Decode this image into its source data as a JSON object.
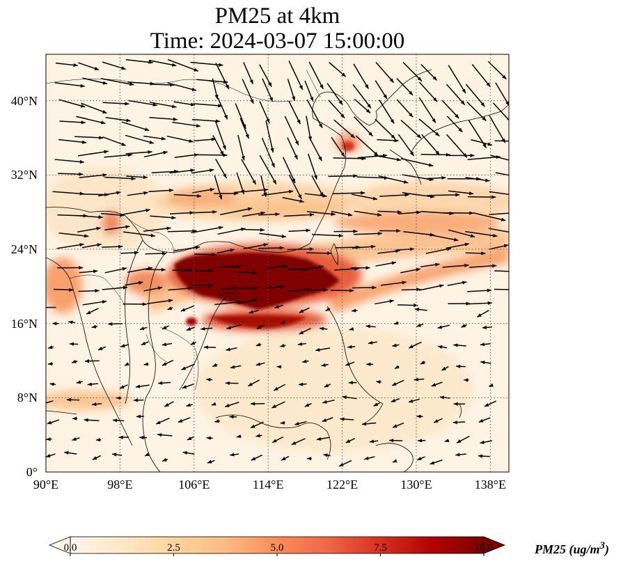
{
  "title": {
    "line1": "PM25 at 4km",
    "line2": "Time: 2024-03-07 15:00:00"
  },
  "map": {
    "lon_range": [
      90,
      140
    ],
    "lat_range": [
      0,
      45
    ],
    "lat_ticks": [
      {
        "value": 40,
        "label": "40°N"
      },
      {
        "value": 32,
        "label": "32°N"
      },
      {
        "value": 24,
        "label": "24°N"
      },
      {
        "value": 16,
        "label": "16°N"
      },
      {
        "value": 8,
        "label": "8°N"
      },
      {
        "value": 0,
        "label": "0°"
      }
    ],
    "lon_ticks": [
      {
        "value": 90,
        "label": "90°E"
      },
      {
        "value": 98,
        "label": "98°E"
      },
      {
        "value": 106,
        "label": "106°E"
      },
      {
        "value": 114,
        "label": "114°E"
      },
      {
        "value": 122,
        "label": "122°E"
      },
      {
        "value": 130,
        "label": "130°E"
      },
      {
        "value": 138,
        "label": "138°E"
      }
    ],
    "gridlines": true
  },
  "colorbar": {
    "label": "PM25 (ug/m",
    "label_sup": "3",
    "label_close": ")",
    "min": 0,
    "max": 10,
    "ticks": [
      "0.0",
      "2.5",
      "5.0",
      "7.5",
      "10.0"
    ],
    "colormap": "OrRd",
    "extend": "both",
    "colors": [
      "#fff7ec",
      "#fee8c8",
      "#fdd49e",
      "#fdbb84",
      "#fc8d59",
      "#ef6548",
      "#d7301f",
      "#b30000",
      "#7f0000"
    ]
  }
}
